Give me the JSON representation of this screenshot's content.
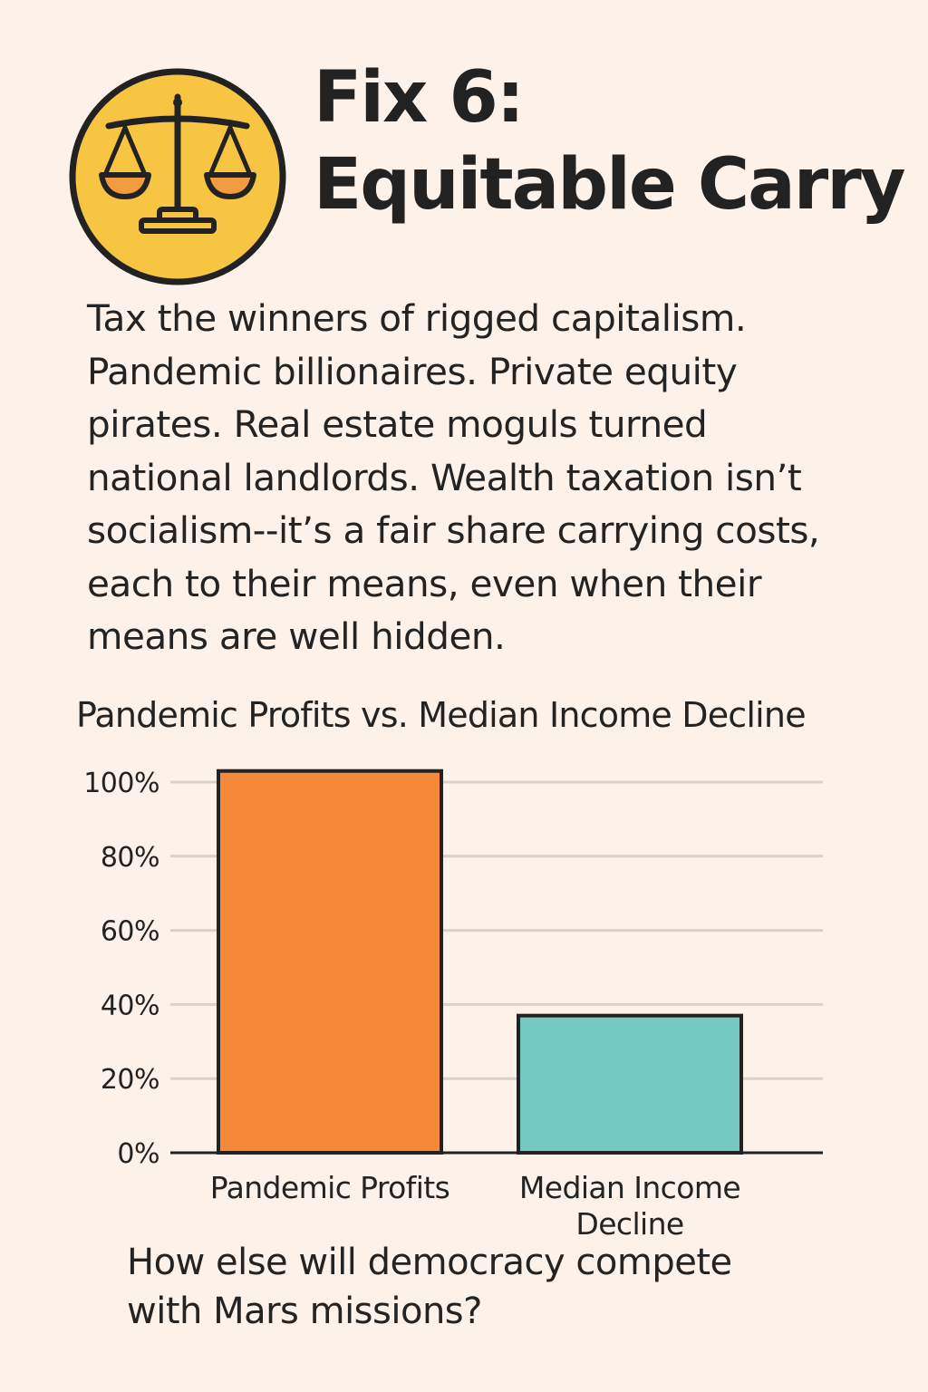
{
  "header": {
    "title_lines": [
      "Fix 6:",
      "Equitable Carry"
    ],
    "icon": "scales-of-justice-icon",
    "badge_color": "#f7c542"
  },
  "body": {
    "lines": [
      "Tax the winners of rigged capitalism.",
      "Pandemic billionaires. Private equity",
      "pirates. Real estate moguls turned",
      "national landlords. Wealth taxation isn’t",
      "socialism--it’s a fair share carrying costs,",
      "each to their means, even when their",
      "means are well hidden."
    ]
  },
  "chart_data": {
    "type": "bar",
    "title": "Pandemic Profits vs. Median Income Decline",
    "categories": [
      [
        "Pandemic Profits"
      ],
      [
        "Median Income",
        "Decline"
      ]
    ],
    "values": [
      103,
      37
    ],
    "value_unit": "%",
    "ylim": [
      0,
      100
    ],
    "yticks": [
      0,
      20,
      40,
      60,
      80,
      100
    ],
    "grid": true,
    "xlabel": "",
    "ylabel": "",
    "colors": [
      "#f6883a",
      "#74cac2"
    ],
    "bar_edge_color": "#222222",
    "grid_color": "#d7d2cc"
  },
  "footer": {
    "lines": [
      "How else will democracy compete",
      "with Mars missions?"
    ]
  }
}
